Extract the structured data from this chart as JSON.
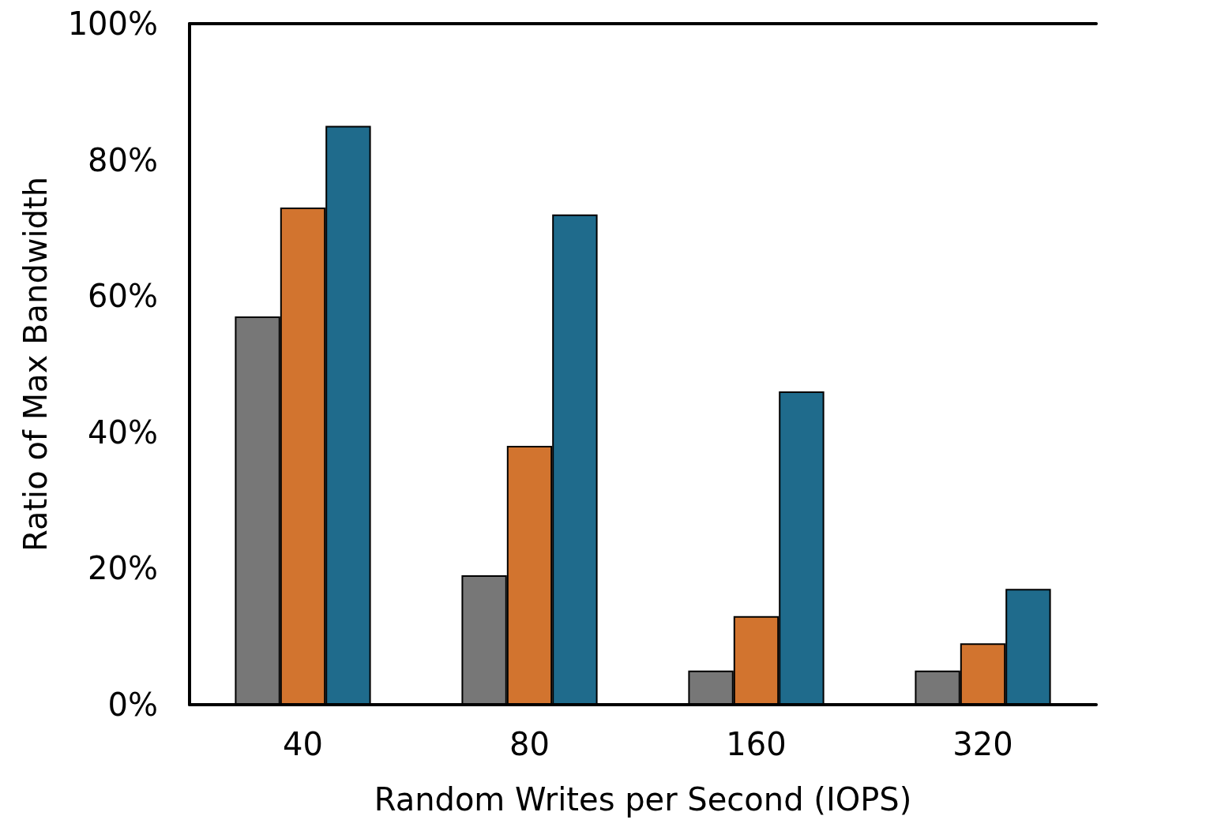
{
  "chart_data": {
    "type": "bar",
    "xlabel": "Random Writes per Second (IOPS)",
    "ylabel": "Ratio of Max Bandwidth",
    "categories": [
      "40",
      "80",
      "160",
      "320"
    ],
    "series": [
      {
        "color": "#777777",
        "values": [
          57,
          19,
          5,
          5
        ]
      },
      {
        "color": "#d2742f",
        "values": [
          73,
          38,
          13,
          9
        ]
      },
      {
        "color": "#1f6b8c",
        "values": [
          85,
          72,
          46,
          17
        ]
      }
    ],
    "ylim": [
      0,
      100
    ],
    "yticks": [
      {
        "value": 0,
        "label": "0%"
      },
      {
        "value": 20,
        "label": "20%"
      },
      {
        "value": 40,
        "label": "40%"
      },
      {
        "value": 60,
        "label": "60%"
      },
      {
        "value": 80,
        "label": "80%"
      },
      {
        "value": 100,
        "label": "100%"
      }
    ],
    "grid": false
  }
}
